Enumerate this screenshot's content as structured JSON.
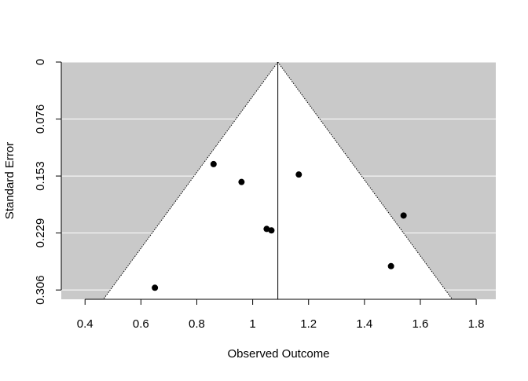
{
  "chart_data": {
    "type": "scatter",
    "subtype": "funnel-plot",
    "title": "",
    "xlabel": "Observed Outcome",
    "ylabel": "Standard Error",
    "xlim": [
      0.315,
      1.87
    ],
    "ylim": [
      0.3185,
      0
    ],
    "y_reversed": true,
    "x_ticks": [
      {
        "value": 0.4,
        "label": "0.4"
      },
      {
        "value": 0.6,
        "label": "0.6"
      },
      {
        "value": 0.8,
        "label": "0.8"
      },
      {
        "value": 1.0,
        "label": "1"
      },
      {
        "value": 1.2,
        "label": "1.2"
      },
      {
        "value": 1.4,
        "label": "1.4"
      },
      {
        "value": 1.6,
        "label": "1.6"
      },
      {
        "value": 1.8,
        "label": "1.8"
      }
    ],
    "y_ticks": [
      {
        "value": 0,
        "label": "0"
      },
      {
        "value": 0.0765,
        "label": "0.076"
      },
      {
        "value": 0.153,
        "label": "0.153"
      },
      {
        "value": 0.2295,
        "label": "0.229"
      },
      {
        "value": 0.306,
        "label": "0.306"
      }
    ],
    "pooled_estimate": 1.09,
    "funnel_z": 1.96,
    "grid": "horizontal",
    "colors": {
      "background_region": "#c9c9c9",
      "funnel_fill": "#ffffff",
      "gridline": "#ffffff",
      "points": "#000000",
      "lines": "#000000"
    },
    "points": [
      {
        "x": 0.86,
        "y": 0.137
      },
      {
        "x": 0.96,
        "y": 0.161
      },
      {
        "x": 1.05,
        "y": 0.224
      },
      {
        "x": 1.067,
        "y": 0.226
      },
      {
        "x": 1.165,
        "y": 0.151
      },
      {
        "x": 1.495,
        "y": 0.274
      },
      {
        "x": 1.54,
        "y": 0.206
      },
      {
        "x": 0.65,
        "y": 0.303
      }
    ]
  }
}
